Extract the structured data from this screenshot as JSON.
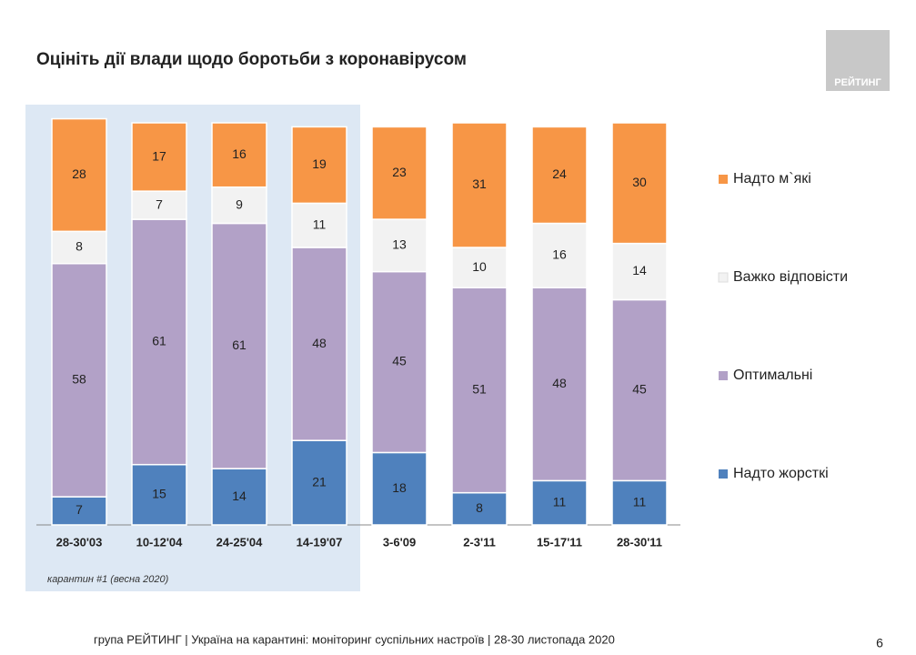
{
  "chart_data": {
    "type": "stacked_bar",
    "title": "Оцініть дії влади щодо боротьби з коронавірусом",
    "categories": [
      "28-30'03",
      "10-12'04",
      "24-25'04",
      "14-19'07",
      "3-6'09",
      "2-3'11",
      "15-17'11",
      "28-30'11"
    ],
    "series": [
      {
        "name": "Надто жорсткі",
        "color": "#4f81bd",
        "values": [
          7,
          15,
          14,
          21,
          18,
          8,
          11,
          11
        ]
      },
      {
        "name": "Оптимальні",
        "color": "#b2a1c7",
        "values": [
          58,
          61,
          61,
          48,
          45,
          51,
          48,
          45
        ]
      },
      {
        "name": "Важко відповісти",
        "color": "#f2f2f2",
        "values": [
          8,
          7,
          9,
          11,
          13,
          10,
          16,
          14
        ]
      },
      {
        "name": "Надто м`які",
        "color": "#f79646",
        "values": [
          28,
          17,
          16,
          19,
          23,
          31,
          24,
          30
        ]
      }
    ],
    "annotation": "карантин #1 (весна 2020)",
    "legend": "right"
  },
  "logo": "РЕЙТИНГ",
  "footer": "група РЕЙТИНГ | Україна на карантині: моніторинг суспільних настроїв | 28-30 листопада 2020",
  "page_number": 6
}
